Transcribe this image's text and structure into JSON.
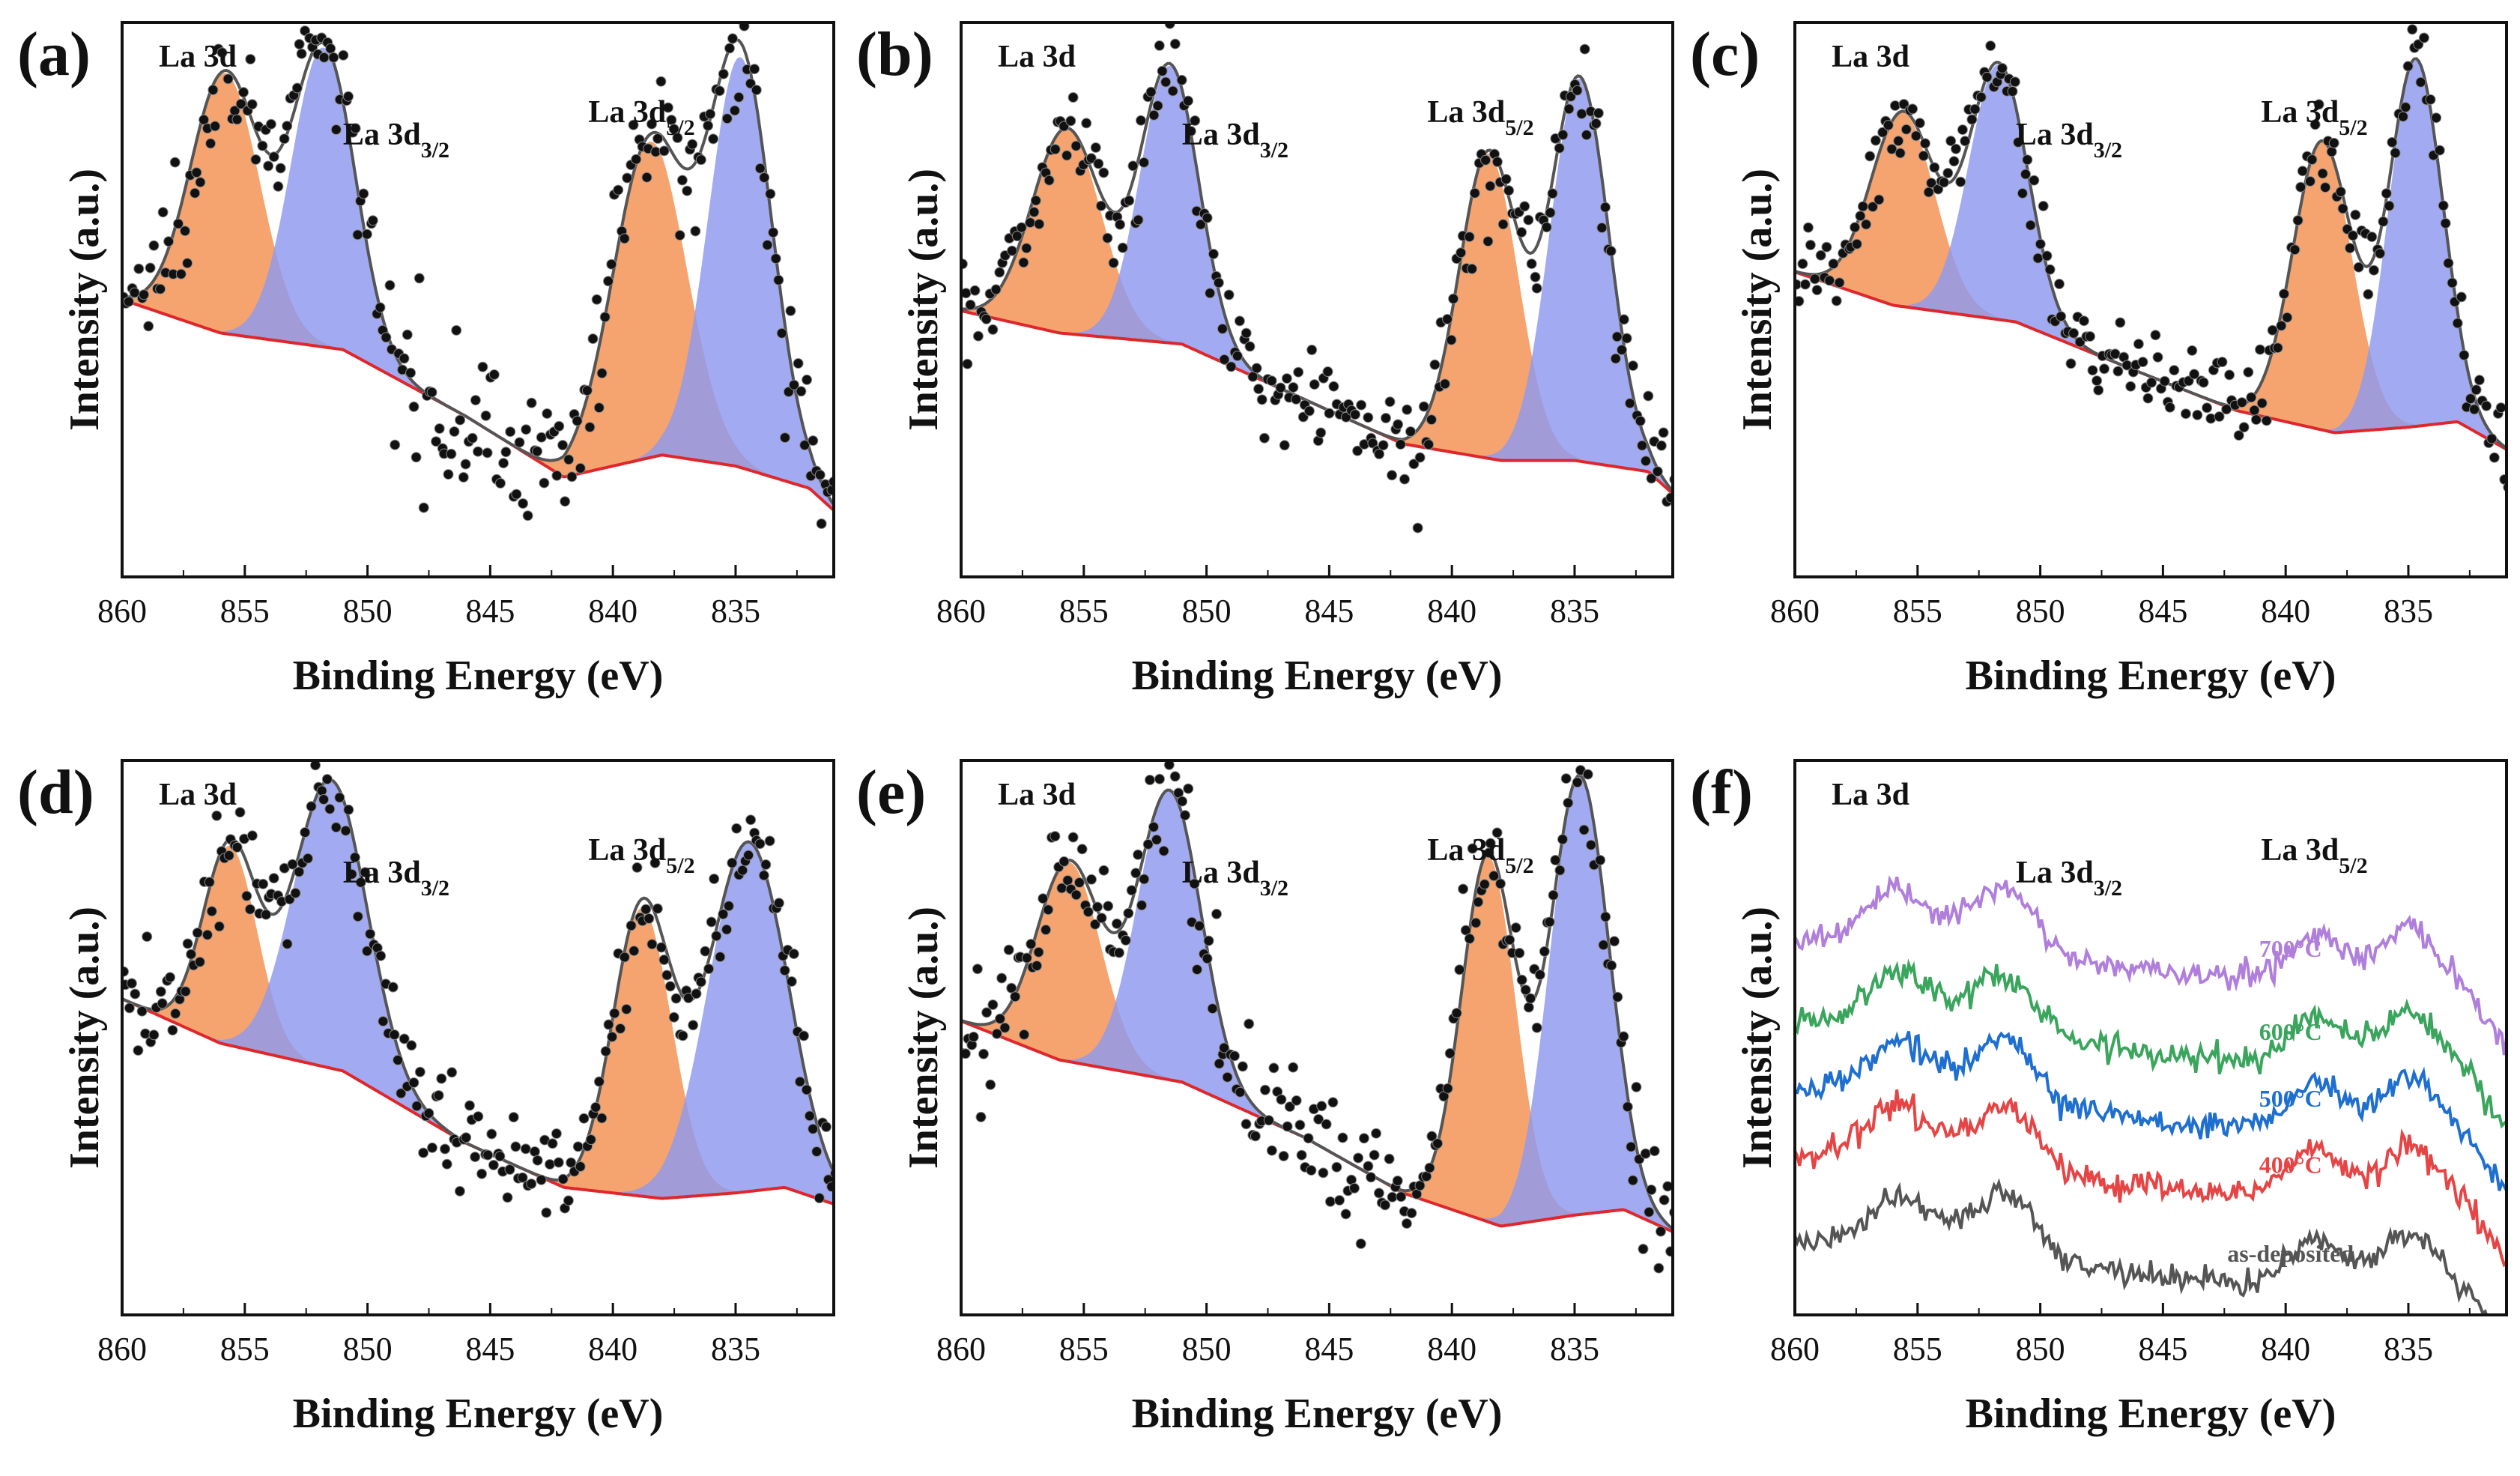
{
  "figure": {
    "x_axis_title": "Binding Energy (eV)",
    "y_axis_title": "Intensity (a.u.)",
    "xlim": [
      860,
      831
    ],
    "x_ticks": [
      "860",
      "855",
      "850",
      "845",
      "840",
      "835"
    ],
    "colors": {
      "peak_a": "#f4904f",
      "peak_b": "#8e98ee",
      "background": "#e0262b",
      "fit": "#555555",
      "points": "#111111"
    }
  },
  "chart_data": [
    {
      "panel": "(a)",
      "type": "scatter",
      "title": "La 3d",
      "label_3_2": "La 3d3/2",
      "label_5_2": "La 3d5/2",
      "xlabel": "Binding Energy (eV)",
      "ylabel": "Intensity (a.u.)",
      "xlim": [
        860,
        831
      ],
      "ylim": [
        0,
        1
      ],
      "background": [
        [
          860,
          0.5
        ],
        [
          856,
          0.44
        ],
        [
          851,
          0.41
        ],
        [
          846,
          0.29
        ],
        [
          842,
          0.18
        ],
        [
          838,
          0.22
        ],
        [
          835,
          0.2
        ],
        [
          832,
          0.16
        ],
        [
          831,
          0.12
        ]
      ],
      "peaks": [
        {
          "center": 855.8,
          "height": 0.47,
          "width": 1.4,
          "color": "peak_a"
        },
        {
          "center": 851.8,
          "height": 0.54,
          "width": 1.3,
          "color": "peak_b"
        },
        {
          "center": 838.5,
          "height": 0.57,
          "width": 1.5,
          "color": "peak_a"
        },
        {
          "center": 834.8,
          "height": 0.74,
          "width": 1.3,
          "color": "peak_b"
        }
      ],
      "noise": 0.06
    },
    {
      "panel": "(b)",
      "type": "scatter",
      "title": "La 3d",
      "label_3_2": "La 3d3/2",
      "label_5_2": "La 3d5/2",
      "xlabel": "Binding Energy (eV)",
      "ylabel": "Intensity (a.u.)",
      "xlim": [
        860,
        831
      ],
      "ylim": [
        0,
        1
      ],
      "background": [
        [
          860,
          0.48
        ],
        [
          856,
          0.44
        ],
        [
          851,
          0.42
        ],
        [
          846,
          0.32
        ],
        [
          842,
          0.24
        ],
        [
          838,
          0.21
        ],
        [
          835,
          0.21
        ],
        [
          832,
          0.19
        ],
        [
          831,
          0.15
        ]
      ],
      "peaks": [
        {
          "center": 855.7,
          "height": 0.37,
          "width": 1.4,
          "color": "peak_a"
        },
        {
          "center": 851.5,
          "height": 0.5,
          "width": 1.2,
          "color": "peak_b"
        },
        {
          "center": 838.5,
          "height": 0.55,
          "width": 1.2,
          "color": "peak_a"
        },
        {
          "center": 834.8,
          "height": 0.69,
          "width": 1.2,
          "color": "peak_b"
        }
      ],
      "noise": 0.05
    },
    {
      "panel": "(c)",
      "type": "scatter",
      "title": "La 3d",
      "label_3_2": "La 3d3/2",
      "label_5_2": "La 3d5/2",
      "xlabel": "Binding Energy (eV)",
      "ylabel": "Intensity (a.u.)",
      "xlim": [
        860,
        831
      ],
      "ylim": [
        0,
        1
      ],
      "background": [
        [
          860,
          0.55
        ],
        [
          856,
          0.49
        ],
        [
          851,
          0.46
        ],
        [
          846,
          0.37
        ],
        [
          842,
          0.3
        ],
        [
          838,
          0.26
        ],
        [
          835,
          0.27
        ],
        [
          833,
          0.28
        ],
        [
          831,
          0.23
        ]
      ],
      "peaks": [
        {
          "center": 855.6,
          "height": 0.35,
          "width": 1.3,
          "color": "peak_a"
        },
        {
          "center": 851.7,
          "height": 0.46,
          "width": 1.2,
          "color": "peak_b"
        },
        {
          "center": 838.5,
          "height": 0.52,
          "width": 1.2,
          "color": "peak_a"
        },
        {
          "center": 834.7,
          "height": 0.66,
          "width": 1.1,
          "color": "peak_b"
        }
      ],
      "noise": 0.04
    },
    {
      "panel": "(d)",
      "type": "scatter",
      "title": "La 3d",
      "label_3_2": "La 3d3/2",
      "label_5_2": "La 3d5/2",
      "xlabel": "Binding Energy (eV)",
      "ylabel": "Intensity (a.u.)",
      "xlim": [
        860,
        831
      ],
      "ylim": [
        0,
        1
      ],
      "background": [
        [
          860,
          0.57
        ],
        [
          856,
          0.49
        ],
        [
          851,
          0.44
        ],
        [
          846,
          0.31
        ],
        [
          842,
          0.23
        ],
        [
          838,
          0.21
        ],
        [
          835,
          0.22
        ],
        [
          833,
          0.23
        ],
        [
          831,
          0.2
        ]
      ],
      "peaks": [
        {
          "center": 855.6,
          "height": 0.36,
          "width": 1.1,
          "color": "peak_a"
        },
        {
          "center": 851.5,
          "height": 0.52,
          "width": 1.5,
          "color": "peak_b"
        },
        {
          "center": 838.8,
          "height": 0.52,
          "width": 1.2,
          "color": "peak_a"
        },
        {
          "center": 834.5,
          "height": 0.63,
          "width": 1.6,
          "color": "peak_b"
        }
      ],
      "noise": 0.05
    },
    {
      "panel": "(e)",
      "type": "scatter",
      "title": "La 3d",
      "label_3_2": "La 3d3/2",
      "label_5_2": "La 3d5/2",
      "xlabel": "Binding Energy (eV)",
      "ylabel": "Intensity (a.u.)",
      "xlim": [
        860,
        831
      ],
      "ylim": [
        0,
        1
      ],
      "background": [
        [
          860,
          0.53
        ],
        [
          856,
          0.46
        ],
        [
          851,
          0.42
        ],
        [
          846,
          0.32
        ],
        [
          842,
          0.22
        ],
        [
          838,
          0.16
        ],
        [
          835,
          0.18
        ],
        [
          833,
          0.19
        ],
        [
          831,
          0.15
        ]
      ],
      "peaks": [
        {
          "center": 855.6,
          "height": 0.36,
          "width": 1.3,
          "color": "peak_a"
        },
        {
          "center": 851.5,
          "height": 0.52,
          "width": 1.3,
          "color": "peak_b"
        },
        {
          "center": 838.5,
          "height": 0.66,
          "width": 1.1,
          "color": "peak_a"
        },
        {
          "center": 834.8,
          "height": 0.79,
          "width": 1.2,
          "color": "peak_b"
        }
      ],
      "noise": 0.05
    },
    {
      "panel": "(f)",
      "type": "line",
      "title": "La 3d",
      "label_3_2": "La 3d3/2",
      "label_5_2": "La 3d5/2",
      "xlabel": "Binding Energy (eV)",
      "ylabel": "Intensity (a.u.)",
      "xlim": [
        860,
        831
      ],
      "ylim": [
        0,
        1
      ],
      "series": [
        {
          "name": "700°C",
          "color": "#b07fdb",
          "offset": 0.62
        },
        {
          "name": "600°C",
          "color": "#3aa55c",
          "offset": 0.47
        },
        {
          "name": "500°C",
          "color": "#1f6fd0",
          "offset": 0.35
        },
        {
          "name": "400°C",
          "color": "#e64545",
          "offset": 0.23
        },
        {
          "name": "as-deposited",
          "color": "#555555",
          "offset": 0.07
        }
      ]
    }
  ]
}
